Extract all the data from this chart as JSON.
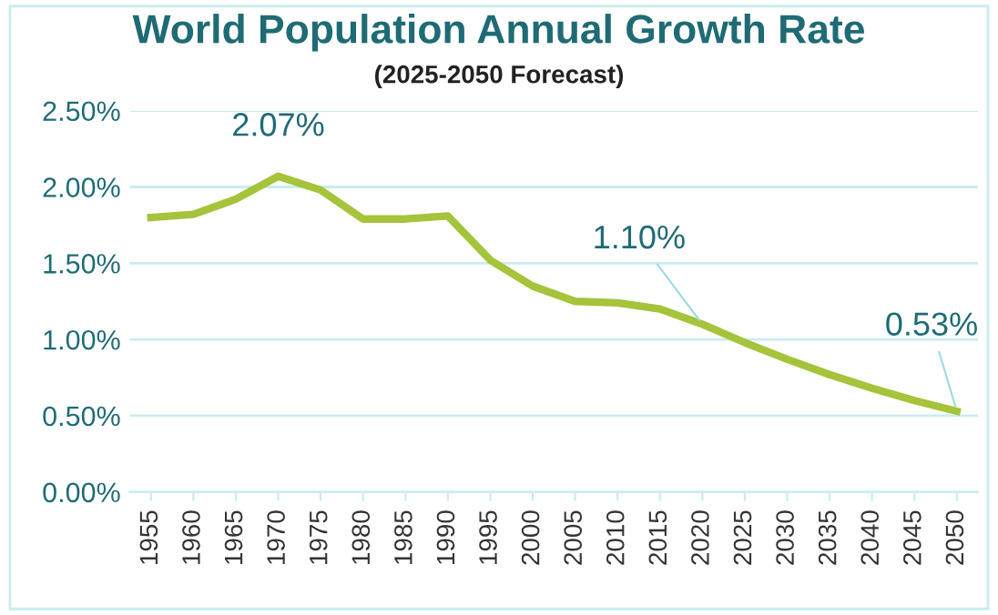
{
  "chart_data": {
    "type": "line",
    "title": "World Population Annual Growth Rate",
    "subtitle": "(2025-2050 Forecast)",
    "categories": [
      "1955",
      "1960",
      "1965",
      "1970",
      "1975",
      "1980",
      "1985",
      "1990",
      "1995",
      "2000",
      "2005",
      "2010",
      "2015",
      "2020",
      "2025",
      "2030",
      "2035",
      "2040",
      "2045",
      "2050"
    ],
    "series": [
      {
        "color": "#a5c33b",
        "values": [
          1.8,
          1.82,
          1.92,
          2.07,
          1.98,
          1.79,
          1.79,
          1.81,
          1.52,
          1.35,
          1.25,
          1.24,
          1.2,
          1.1,
          0.98,
          0.87,
          0.77,
          0.68,
          0.6,
          0.53
        ]
      }
    ],
    "ylim": [
      0,
      2.5
    ],
    "yticks": [
      {
        "value": 0,
        "label": "0.00%"
      },
      {
        "value": 0.5,
        "label": "0.50%"
      },
      {
        "value": 1.0,
        "label": "1.00%"
      },
      {
        "value": 1.5,
        "label": "1.50%"
      },
      {
        "value": 2.0,
        "label": "2.00%"
      },
      {
        "value": 2.5,
        "label": "2.50%"
      }
    ],
    "annotations": [
      {
        "text": "2.07%",
        "x": "1970",
        "y": 2.07
      },
      {
        "text": "1.10%",
        "x": "2020",
        "y": 1.1
      },
      {
        "text": "0.53%",
        "x": "2050",
        "y": 0.53
      }
    ],
    "grid": "y",
    "legend": false,
    "marker": "none",
    "line_style": "solid"
  }
}
